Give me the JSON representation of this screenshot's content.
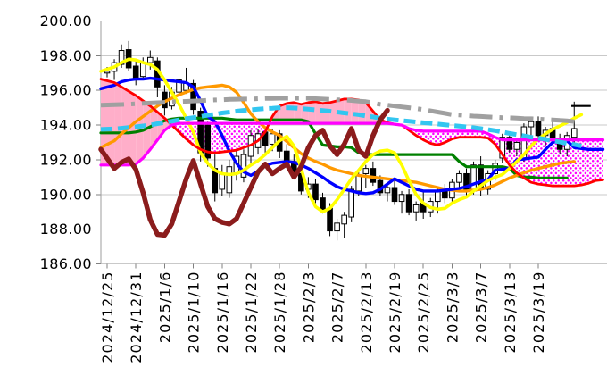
{
  "chart_data": {
    "type": "candlestick",
    "title": "",
    "grid": true,
    "legend": "none",
    "y_axis": {
      "min": 186,
      "max": 200,
      "step": 2,
      "tick_labels": [
        "200.00",
        "198.00",
        "196.00",
        "194.00",
        "192.00",
        "190.00",
        "188.00",
        "186.00"
      ]
    },
    "x_axis": {
      "labels": [
        "2024/12/25",
        "2024/12/31",
        "2025/1/6",
        "2025/1/10",
        "2025/1/16",
        "2025/1/22",
        "2025/1/28",
        "2025/2/3",
        "2025/2/7",
        "2025/2/13",
        "2025/2/19",
        "2025/2/25",
        "2025/3/3",
        "2025/3/7",
        "2025/3/13",
        "2025/3/19"
      ],
      "label_indices": [
        0,
        4,
        8,
        12,
        16,
        20,
        24,
        28,
        32,
        36,
        40,
        44,
        48,
        52,
        56,
        60
      ]
    },
    "candles": {
      "up_fill": "#FFFFFF",
      "down_fill": "#000000",
      "outline": "#000000",
      "open": [
        197.0,
        197.1,
        197.5,
        198.35,
        197.4,
        196.8,
        197.6,
        197.7,
        195.9,
        195.1,
        195.9,
        196.0,
        196.4,
        194.8,
        194.0,
        191.5,
        190.3,
        190.1,
        191.2,
        191.0,
        192.2,
        192.7,
        193.6,
        192.9,
        193.5,
        192.5,
        191.9,
        191.2,
        190.3,
        190.6,
        189.8,
        189.2,
        187.9,
        188.3,
        188.7,
        190.2,
        191.2,
        191.5,
        190.8,
        190.1,
        190.4,
        189.6,
        190.0,
        189.0,
        189.5,
        189.0,
        189.6,
        190.2,
        189.8,
        190.7,
        191.2,
        190.2,
        191.7,
        190.3,
        191.2,
        192.1,
        193.3,
        192.6,
        192.1,
        193.9,
        194.2,
        193.4,
        193.8,
        193.1,
        192.6,
        193.3
      ],
      "high": [
        197.35,
        197.8,
        198.65,
        198.85,
        197.7,
        197.9,
        198.3,
        197.9,
        196.3,
        196.2,
        196.9,
        197.3,
        196.6,
        195.0,
        194.2,
        192.3,
        191.7,
        192.0,
        192.5,
        192.6,
        193.7,
        193.8,
        193.9,
        193.8,
        193.7,
        192.9,
        192.3,
        191.5,
        191.0,
        190.9,
        190.1,
        189.5,
        188.6,
        189.0,
        190.5,
        191.3,
        191.7,
        191.9,
        191.1,
        190.6,
        190.9,
        190.2,
        190.3,
        189.6,
        190.2,
        189.8,
        190.4,
        190.6,
        190.9,
        191.4,
        191.5,
        191.9,
        192.2,
        191.4,
        192.0,
        193.5,
        193.6,
        193.2,
        194.1,
        194.4,
        194.5,
        193.9,
        194.3,
        193.5,
        193.6,
        195.35
      ],
      "low": [
        196.75,
        196.6,
        197.3,
        197.1,
        196.3,
        196.6,
        197.2,
        195.6,
        194.55,
        194.9,
        195.6,
        195.8,
        194.6,
        191.9,
        191.6,
        189.6,
        189.9,
        189.8,
        190.8,
        190.7,
        191.8,
        192.3,
        192.3,
        192.5,
        192.1,
        191.6,
        190.9,
        190.0,
        189.8,
        189.5,
        188.9,
        187.6,
        187.35,
        187.5,
        188.4,
        189.9,
        190.4,
        190.5,
        189.9,
        189.6,
        189.4,
        188.9,
        188.8,
        188.5,
        188.6,
        188.7,
        188.9,
        189.5,
        189.6,
        190.3,
        189.9,
        190.0,
        189.9,
        190.0,
        190.8,
        191.8,
        192.4,
        192.2,
        191.9,
        193.2,
        193.2,
        192.8,
        192.9,
        192.3,
        192.2,
        192.9
      ],
      "close": [
        197.1,
        197.6,
        198.3,
        197.3,
        196.7,
        197.6,
        197.9,
        196.2,
        195.0,
        195.9,
        196.6,
        196.4,
        194.9,
        192.4,
        192.1,
        190.1,
        191.2,
        191.6,
        192.2,
        192.3,
        193.4,
        193.5,
        192.8,
        193.5,
        192.5,
        191.8,
        191.1,
        190.2,
        190.6,
        189.7,
        189.1,
        187.9,
        188.35,
        188.8,
        190.3,
        191.1,
        191.5,
        190.7,
        190.1,
        190.4,
        189.6,
        190.0,
        189.0,
        189.4,
        189.0,
        189.6,
        190.2,
        189.8,
        190.7,
        191.2,
        190.2,
        191.7,
        190.3,
        191.2,
        191.8,
        193.3,
        192.6,
        193.0,
        193.9,
        194.2,
        193.4,
        193.7,
        193.1,
        192.6,
        193.4,
        193.8
      ]
    },
    "cloud": {
      "upper_series": "senkou-a-red",
      "lower_series": "senkou-b-magenta",
      "bull_fill": "#FFAEC9",
      "bear_fill": "magenta-dots",
      "dot_color": "#FF00FF"
    },
    "series": [
      {
        "name": "kijun-green",
        "color": "#008000",
        "width": 3.2,
        "style": "solid",
        "values": [
          193.55,
          193.55,
          193.55,
          193.55,
          193.6,
          193.7,
          193.9,
          194.1,
          194.25,
          194.35,
          194.4,
          194.4,
          194.4,
          194.4,
          194.4,
          194.4,
          194.4,
          194.35,
          194.3,
          194.3,
          194.3,
          194.3,
          194.3,
          194.3,
          194.3,
          194.3,
          194.3,
          194.3,
          194.2,
          193.5,
          192.85,
          192.8,
          192.75,
          192.75,
          192.7,
          192.4,
          192.3,
          192.3,
          192.3,
          192.3,
          192.3,
          192.3,
          192.3,
          192.3,
          192.3,
          192.3,
          192.3,
          192.3,
          192.3,
          191.9,
          191.6,
          191.6,
          191.6,
          191.6,
          191.6,
          191.6,
          191.5,
          191.1,
          191.0,
          191.0,
          190.95,
          190.95,
          190.95,
          190.95,
          190.95,
          null,
          null,
          null,
          null,
          null
        ]
      },
      {
        "name": "ma-orange",
        "color": "#FF9900",
        "width": 3.4,
        "style": "solid",
        "values": [
          192.7,
          193.1,
          193.5,
          193.85,
          194.2,
          194.5,
          194.8,
          195.1,
          195.35,
          195.55,
          195.75,
          195.9,
          196.05,
          196.15,
          196.2,
          196.25,
          196.3,
          196.2,
          195.9,
          195.3,
          194.65,
          194.2,
          193.85,
          193.6,
          193.4,
          193.05,
          192.7,
          192.35,
          192.1,
          191.9,
          191.75,
          191.55,
          191.4,
          191.3,
          191.2,
          191.1,
          191.05,
          191.0,
          190.95,
          190.9,
          190.85,
          190.8,
          190.75,
          190.7,
          190.6,
          190.5,
          190.4,
          190.3,
          190.25,
          190.2,
          190.2,
          190.25,
          190.3,
          190.4,
          190.55,
          190.75,
          190.95,
          191.1,
          191.25,
          191.4,
          191.5,
          191.6,
          191.7,
          191.8,
          191.85,
          191.9,
          null,
          null,
          null,
          null
        ]
      },
      {
        "name": "ma-blue",
        "color": "#0000FF",
        "width": 3.4,
        "style": "solid",
        "values": [
          196.1,
          196.3,
          196.5,
          196.6,
          196.65,
          196.65,
          196.7,
          196.65,
          196.6,
          196.55,
          196.5,
          196.45,
          196.2,
          195.4,
          194.5,
          194.2,
          193.4,
          192.5,
          191.8,
          191.3,
          191.1,
          191.35,
          191.65,
          191.8,
          191.85,
          191.9,
          191.85,
          191.7,
          191.5,
          191.25,
          191.0,
          190.7,
          190.45,
          190.3,
          190.2,
          190.1,
          190.05,
          190.1,
          190.3,
          190.6,
          190.9,
          190.7,
          190.5,
          190.3,
          190.2,
          190.2,
          190.2,
          190.25,
          190.3,
          190.35,
          190.45,
          190.6,
          190.75,
          190.85,
          191.4,
          191.45,
          191.5,
          192.0,
          192.05,
          192.1,
          192.15,
          192.6,
          193.0,
          193.1,
          193.1,
          192.7,
          192.65,
          192.6,
          192.6,
          192.6
        ]
      },
      {
        "name": "ma-yellow",
        "color": "#FFFF00",
        "width": 3.6,
        "style": "solid",
        "values": [
          197.1,
          197.35,
          197.6,
          197.8,
          197.75,
          197.6,
          197.5,
          197.2,
          196.6,
          195.9,
          195.2,
          194.4,
          193.6,
          192.4,
          191.8,
          191.4,
          191.2,
          191.15,
          191.2,
          191.4,
          191.7,
          191.95,
          192.3,
          192.7,
          193.1,
          193.35,
          192.8,
          191.5,
          190.1,
          189.3,
          189.0,
          189.2,
          189.7,
          190.3,
          190.9,
          191.4,
          191.9,
          192.3,
          192.5,
          192.55,
          192.4,
          191.7,
          190.8,
          190.0,
          189.5,
          189.25,
          189.15,
          189.2,
          189.5,
          189.7,
          189.85,
          190.2,
          190.5,
          190.8,
          191.0,
          191.15,
          191.5,
          191.9,
          192.3,
          192.8,
          193.2,
          193.5,
          193.75,
          193.95,
          194.15,
          194.4,
          194.6,
          null,
          null,
          null
        ]
      },
      {
        "name": "senkou-a-red",
        "color": "#FF0000",
        "width": 2.8,
        "style": "solid",
        "values": [
          196.65,
          196.45,
          196.2,
          195.95,
          195.7,
          195.4,
          195.1,
          194.75,
          194.4,
          194.0,
          193.6,
          193.2,
          192.85,
          192.6,
          192.45,
          192.4,
          192.45,
          192.5,
          192.55,
          192.7,
          192.85,
          193.1,
          193.6,
          194.5,
          195.1,
          195.25,
          195.3,
          195.2,
          195.3,
          195.35,
          195.25,
          195.3,
          195.4,
          195.5,
          195.5,
          195.45,
          195.3,
          194.8,
          194.3,
          194.15,
          194.05,
          194.0,
          193.7,
          193.4,
          193.15,
          192.95,
          192.85,
          193.0,
          193.2,
          193.3,
          193.3,
          193.3,
          193.3,
          193.25,
          192.9,
          192.3,
          191.7,
          191.25,
          190.95,
          190.7,
          190.6,
          190.55,
          190.5,
          190.5,
          190.5,
          190.5,
          190.55,
          190.65,
          190.8,
          190.85
        ]
      },
      {
        "name": "senkou-b-magenta",
        "color": "#FF00FF",
        "width": 3.2,
        "style": "solid",
        "values": [
          191.7,
          191.7,
          191.7,
          191.7,
          191.75,
          192.1,
          192.6,
          193.15,
          193.7,
          194.0,
          194.1,
          194.1,
          194.1,
          194.1,
          194.1,
          194.1,
          194.1,
          194.1,
          194.1,
          194.1,
          194.1,
          194.1,
          194.1,
          194.1,
          194.1,
          194.1,
          194.1,
          194.1,
          194.1,
          194.1,
          194.1,
          194.1,
          194.1,
          194.1,
          194.1,
          194.1,
          194.1,
          194.1,
          194.1,
          194.1,
          194.05,
          194.0,
          193.8,
          193.7,
          193.65,
          193.65,
          193.65,
          193.65,
          193.65,
          193.65,
          193.65,
          193.65,
          193.65,
          193.5,
          193.3,
          193.15,
          193.15,
          193.15,
          193.15,
          193.15,
          193.15,
          193.15,
          193.15,
          193.15,
          193.15,
          193.15,
          193.15,
          193.15,
          193.15,
          193.15
        ]
      },
      {
        "name": "ma-cyan-dashed",
        "color": "#33C6F0",
        "width": 5,
        "style": "dashed",
        "values": [
          193.75,
          193.78,
          193.82,
          193.86,
          193.9,
          193.95,
          194.0,
          194.08,
          194.15,
          194.22,
          194.3,
          194.37,
          194.43,
          194.5,
          194.57,
          194.63,
          194.7,
          194.75,
          194.8,
          194.85,
          194.88,
          194.92,
          194.95,
          194.97,
          195.0,
          195.0,
          194.98,
          194.95,
          194.92,
          194.88,
          194.84,
          194.8,
          194.75,
          194.7,
          194.65,
          194.6,
          194.53,
          194.47,
          194.4,
          194.35,
          194.3,
          194.26,
          194.22,
          194.18,
          194.14,
          194.1,
          194.06,
          194.02,
          193.98,
          193.94,
          193.9,
          193.85,
          193.8,
          193.74,
          193.68,
          193.6,
          193.52,
          193.45,
          193.38,
          193.3,
          193.25,
          193.18,
          193.1,
          193.02,
          192.95,
          192.88,
          192.8,
          null,
          null,
          null
        ]
      },
      {
        "name": "ma-gray-dashdot",
        "color": "#A0A0A0",
        "width": 5,
        "style": "dashdot",
        "values": [
          195.15,
          195.17,
          195.19,
          195.21,
          195.23,
          195.25,
          195.27,
          195.29,
          195.31,
          195.33,
          195.35,
          195.37,
          195.39,
          195.41,
          195.43,
          195.45,
          195.46,
          195.48,
          195.49,
          195.5,
          195.5,
          195.52,
          195.53,
          195.54,
          195.55,
          195.55,
          195.55,
          195.55,
          195.55,
          195.52,
          195.5,
          195.48,
          195.46,
          195.45,
          195.42,
          195.38,
          195.35,
          195.28,
          195.2,
          195.15,
          195.1,
          195.05,
          195.0,
          194.95,
          194.9,
          194.82,
          194.75,
          194.68,
          194.6,
          194.58,
          194.55,
          194.52,
          194.5,
          194.47,
          194.45,
          194.43,
          194.42,
          194.4,
          194.38,
          194.37,
          194.35,
          194.32,
          194.3,
          194.27,
          194.25,
          194.2,
          null,
          null,
          null,
          null
        ]
      },
      {
        "name": "chikou-darkred",
        "color": "#8B1C1C",
        "width": 5.5,
        "style": "solid",
        "values": [
          192.6,
          191.5,
          191.85,
          192.05,
          191.45,
          190.1,
          188.55,
          187.7,
          187.65,
          188.3,
          189.6,
          190.9,
          191.95,
          190.6,
          189.3,
          188.6,
          188.4,
          188.3,
          188.6,
          189.5,
          190.4,
          191.3,
          191.75,
          191.2,
          191.5,
          191.75,
          191.0,
          191.6,
          192.7,
          193.4,
          193.7,
          192.8,
          192.3,
          192.9,
          193.8,
          192.55,
          192.2,
          193.4,
          194.3,
          194.85,
          null,
          null,
          null,
          null,
          null,
          null,
          null,
          null,
          null,
          null,
          null,
          null,
          null,
          null,
          null,
          null,
          null,
          null,
          null,
          null,
          null,
          null,
          null,
          null,
          null,
          null,
          null,
          null,
          null,
          null
        ]
      }
    ],
    "annotations": {
      "last_price_tick": {
        "value": 195.1
      }
    }
  }
}
